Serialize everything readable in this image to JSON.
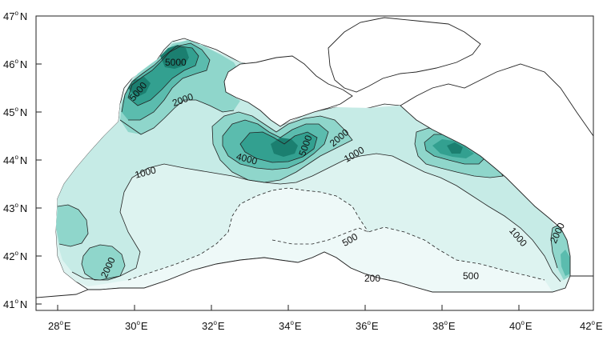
{
  "map": {
    "lat_labels": [
      {
        "deg": "47",
        "hemi": "N"
      },
      {
        "deg": "46",
        "hemi": "N"
      },
      {
        "deg": "45",
        "hemi": "N"
      },
      {
        "deg": "44",
        "hemi": "N"
      },
      {
        "deg": "43",
        "hemi": "N"
      },
      {
        "deg": "42",
        "hemi": "N"
      },
      {
        "deg": "41",
        "hemi": "N"
      }
    ],
    "lon_labels": [
      {
        "deg": "28",
        "hemi": "E"
      },
      {
        "deg": "30",
        "hemi": "E"
      },
      {
        "deg": "32",
        "hemi": "E"
      },
      {
        "deg": "34",
        "hemi": "E"
      },
      {
        "deg": "36",
        "hemi": "E"
      },
      {
        "deg": "38",
        "hemi": "E"
      },
      {
        "deg": "40",
        "hemi": "E"
      },
      {
        "deg": "42",
        "hemi": "E"
      }
    ],
    "contour_labels": {
      "c5000_nw": "5000",
      "c5000_w": "5000",
      "c2000_nw": "2000",
      "c4000": "4000",
      "c5000_c": "5000",
      "c2000_ne": "2000",
      "c1000_e": "1000",
      "c1000_w": "1000",
      "c2000_sw": "2000",
      "c500_c": "500",
      "c200_s": "200",
      "c500_se": "500",
      "c1000_se": "1000",
      "c2000_se": "2000"
    },
    "colors": {
      "level_200": "#eef9f8",
      "level_500": "#ddf3f0",
      "level_1000": "#c6ebe6",
      "level_2000": "#8fd6cb",
      "level_3000": "#5bbcae",
      "level_4000": "#33a090",
      "level_5000": "#1b7f70",
      "land": "#ffffff",
      "line": "#222222"
    }
  }
}
